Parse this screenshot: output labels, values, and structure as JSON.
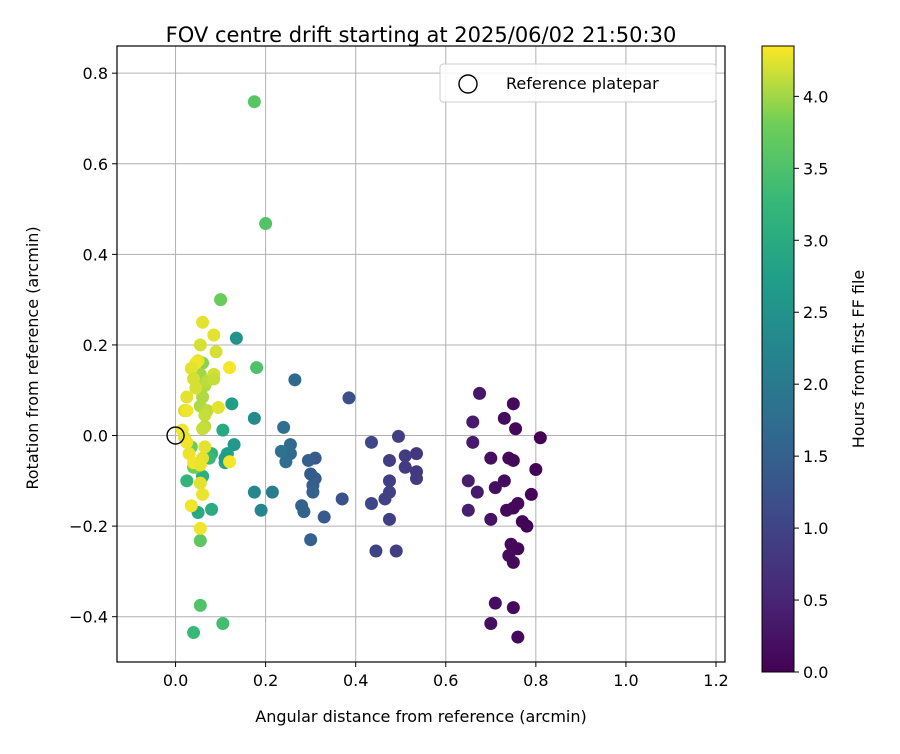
{
  "chart_data": {
    "type": "scatter",
    "title": "FOV centre drift starting at 2025/06/02 21:50:30",
    "xlabel": "Angular distance from reference (arcmin)",
    "ylabel": "Rotation from reference (arcmin)",
    "xlim": [
      -0.13,
      1.22
    ],
    "ylim": [
      -0.5,
      0.86
    ],
    "xticks": [
      {
        "value": 0.0,
        "label": "0.0"
      },
      {
        "value": 0.2,
        "label": "0.2"
      },
      {
        "value": 0.4,
        "label": "0.4"
      },
      {
        "value": 0.6,
        "label": "0.6"
      },
      {
        "value": 0.8,
        "label": "0.8"
      },
      {
        "value": 1.0,
        "label": "1.0"
      },
      {
        "value": 1.2,
        "label": "1.2"
      }
    ],
    "yticks": [
      {
        "value": -0.4,
        "label": "−0.4"
      },
      {
        "value": -0.2,
        "label": "−0.2"
      },
      {
        "value": 0.0,
        "label": "0.0"
      },
      {
        "value": 0.2,
        "label": "0.2"
      },
      {
        "value": 0.4,
        "label": "0.4"
      },
      {
        "value": 0.6,
        "label": "0.6"
      },
      {
        "value": 0.8,
        "label": "0.8"
      }
    ],
    "grid": true,
    "legend": {
      "position": "top-right",
      "entries": [
        {
          "label": "Reference platepar",
          "marker": "open-circle"
        }
      ]
    },
    "reference_point": {
      "x": 0.0,
      "y": 0.0
    },
    "colorbar": {
      "label": "Hours from first FF file",
      "colormap": "viridis",
      "range": [
        0.0,
        4.35
      ],
      "ticks": [
        {
          "value": 0.0,
          "label": "0.0"
        },
        {
          "value": 0.5,
          "label": "0.5"
        },
        {
          "value": 1.0,
          "label": "1.0"
        },
        {
          "value": 1.5,
          "label": "1.5"
        },
        {
          "value": 2.0,
          "label": "2.0"
        },
        {
          "value": 2.5,
          "label": "2.5"
        },
        {
          "value": 3.0,
          "label": "3.0"
        },
        {
          "value": 3.5,
          "label": "3.5"
        },
        {
          "value": 4.0,
          "label": "4.0"
        }
      ]
    },
    "points": [
      {
        "x": 0.81,
        "y": -0.005,
        "hours": 0.02
      },
      {
        "x": 0.8,
        "y": -0.075,
        "hours": 0.05
      },
      {
        "x": 0.79,
        "y": -0.13,
        "hours": 0.07
      },
      {
        "x": 0.78,
        "y": -0.2,
        "hours": 0.03
      },
      {
        "x": 0.77,
        "y": -0.19,
        "hours": 0.05
      },
      {
        "x": 0.76,
        "y": -0.25,
        "hours": 0.08
      },
      {
        "x": 0.76,
        "y": -0.445,
        "hours": 0.1
      },
      {
        "x": 0.75,
        "y": -0.38,
        "hours": 0.12
      },
      {
        "x": 0.745,
        "y": -0.24,
        "hours": 0.1
      },
      {
        "x": 0.74,
        "y": -0.265,
        "hours": 0.14
      },
      {
        "x": 0.75,
        "y": -0.28,
        "hours": 0.12
      },
      {
        "x": 0.76,
        "y": -0.15,
        "hours": 0.1
      },
      {
        "x": 0.75,
        "y": -0.16,
        "hours": 0.09
      },
      {
        "x": 0.735,
        "y": -0.165,
        "hours": 0.12
      },
      {
        "x": 0.73,
        "y": -0.1,
        "hours": 0.14
      },
      {
        "x": 0.74,
        "y": -0.05,
        "hours": 0.1
      },
      {
        "x": 0.75,
        "y": -0.055,
        "hours": 0.08
      },
      {
        "x": 0.755,
        "y": 0.015,
        "hours": 0.09
      },
      {
        "x": 0.75,
        "y": 0.07,
        "hours": 0.12
      },
      {
        "x": 0.73,
        "y": 0.038,
        "hours": 0.15
      },
      {
        "x": 0.71,
        "y": -0.115,
        "hours": 0.2
      },
      {
        "x": 0.7,
        "y": -0.05,
        "hours": 0.18
      },
      {
        "x": 0.7,
        "y": -0.185,
        "hours": 0.22
      },
      {
        "x": 0.7,
        "y": -0.415,
        "hours": 0.2
      },
      {
        "x": 0.71,
        "y": -0.37,
        "hours": 0.18
      },
      {
        "x": 0.675,
        "y": 0.093,
        "hours": 0.3
      },
      {
        "x": 0.66,
        "y": 0.03,
        "hours": 0.35
      },
      {
        "x": 0.66,
        "y": -0.015,
        "hours": 0.38
      },
      {
        "x": 0.67,
        "y": -0.125,
        "hours": 0.35
      },
      {
        "x": 0.65,
        "y": -0.1,
        "hours": 0.4
      },
      {
        "x": 0.65,
        "y": -0.165,
        "hours": 0.42
      },
      {
        "x": 0.535,
        "y": -0.04,
        "hours": 0.8
      },
      {
        "x": 0.535,
        "y": -0.08,
        "hours": 0.82
      },
      {
        "x": 0.535,
        "y": -0.095,
        "hours": 0.85
      },
      {
        "x": 0.51,
        "y": -0.07,
        "hours": 0.85
      },
      {
        "x": 0.51,
        "y": -0.045,
        "hours": 0.88
      },
      {
        "x": 0.495,
        "y": -0.002,
        "hours": 0.9
      },
      {
        "x": 0.475,
        "y": -0.055,
        "hours": 0.9
      },
      {
        "x": 0.475,
        "y": -0.1,
        "hours": 0.92
      },
      {
        "x": 0.475,
        "y": -0.125,
        "hours": 0.95
      },
      {
        "x": 0.465,
        "y": -0.14,
        "hours": 0.95
      },
      {
        "x": 0.475,
        "y": -0.185,
        "hours": 0.92
      },
      {
        "x": 0.49,
        "y": -0.255,
        "hours": 0.9
      },
      {
        "x": 0.445,
        "y": -0.255,
        "hours": 0.98
      },
      {
        "x": 0.435,
        "y": -0.15,
        "hours": 1.05
      },
      {
        "x": 0.435,
        "y": -0.015,
        "hours": 1.05
      },
      {
        "x": 0.385,
        "y": 0.083,
        "hours": 1.2
      },
      {
        "x": 0.37,
        "y": -0.14,
        "hours": 1.25
      },
      {
        "x": 0.33,
        "y": -0.18,
        "hours": 1.4
      },
      {
        "x": 0.31,
        "y": -0.05,
        "hours": 1.4
      },
      {
        "x": 0.31,
        "y": -0.095,
        "hours": 1.45
      },
      {
        "x": 0.305,
        "y": -0.11,
        "hours": 1.45
      },
      {
        "x": 0.305,
        "y": -0.125,
        "hours": 1.5
      },
      {
        "x": 0.3,
        "y": -0.085,
        "hours": 1.42
      },
      {
        "x": 0.295,
        "y": -0.055,
        "hours": 1.48
      },
      {
        "x": 0.3,
        "y": -0.23,
        "hours": 1.5
      },
      {
        "x": 0.28,
        "y": -0.155,
        "hours": 1.55
      },
      {
        "x": 0.285,
        "y": -0.168,
        "hours": 1.55
      },
      {
        "x": 0.265,
        "y": 0.123,
        "hours": 1.65
      },
      {
        "x": 0.255,
        "y": -0.02,
        "hours": 1.7
      },
      {
        "x": 0.255,
        "y": -0.04,
        "hours": 1.72
      },
      {
        "x": 0.245,
        "y": -0.058,
        "hours": 1.75
      },
      {
        "x": 0.24,
        "y": 0.018,
        "hours": 1.8
      },
      {
        "x": 0.235,
        "y": -0.035,
        "hours": 1.85
      },
      {
        "x": 0.215,
        "y": -0.125,
        "hours": 2.05
      },
      {
        "x": 0.19,
        "y": -0.165,
        "hours": 2.25
      },
      {
        "x": 0.175,
        "y": -0.125,
        "hours": 2.3
      },
      {
        "x": 0.175,
        "y": 0.038,
        "hours": 2.35
      },
      {
        "x": 0.135,
        "y": 0.215,
        "hours": 2.5
      },
      {
        "x": 0.13,
        "y": -0.02,
        "hours": 2.6
      },
      {
        "x": 0.125,
        "y": 0.07,
        "hours": 2.75
      },
      {
        "x": 0.115,
        "y": -0.04,
        "hours": 2.75
      },
      {
        "x": 0.11,
        "y": -0.06,
        "hours": 2.85
      },
      {
        "x": 0.11,
        "y": -0.05,
        "hours": 2.7
      },
      {
        "x": 0.105,
        "y": 0.012,
        "hours": 2.95
      },
      {
        "x": 0.08,
        "y": -0.163,
        "hours": 3.0
      },
      {
        "x": 0.05,
        "y": -0.17,
        "hours": 2.95
      },
      {
        "x": 0.06,
        "y": -0.09,
        "hours": 3.05
      },
      {
        "x": 0.06,
        "y": -0.09,
        "hours": 3.1
      },
      {
        "x": 0.08,
        "y": -0.04,
        "hours": 3.15
      },
      {
        "x": 0.025,
        "y": -0.1,
        "hours": 3.2
      },
      {
        "x": 0.075,
        "y": -0.05,
        "hours": 3.3
      },
      {
        "x": 0.04,
        "y": -0.435,
        "hours": 3.3
      },
      {
        "x": 0.105,
        "y": -0.415,
        "hours": 3.4
      },
      {
        "x": 0.055,
        "y": -0.375,
        "hours": 3.55
      },
      {
        "x": 0.055,
        "y": -0.232,
        "hours": 3.65
      },
      {
        "x": 0.18,
        "y": 0.15,
        "hours": 3.5
      },
      {
        "x": 0.2,
        "y": 0.468,
        "hours": 3.55
      },
      {
        "x": 0.175,
        "y": 0.737,
        "hours": 3.6
      },
      {
        "x": 0.1,
        "y": 0.3,
        "hours": 3.75
      },
      {
        "x": 0.045,
        "y": -0.07,
        "hours": 3.7
      },
      {
        "x": 0.035,
        "y": -0.025,
        "hours": 3.75
      },
      {
        "x": 0.04,
        "y": -0.07,
        "hours": 3.8
      },
      {
        "x": 0.06,
        "y": 0.16,
        "hours": 3.9
      },
      {
        "x": 0.045,
        "y": 0.12,
        "hours": 3.95
      },
      {
        "x": 0.055,
        "y": 0.135,
        "hours": 4.0
      },
      {
        "x": 0.065,
        "y": 0.11,
        "hours": 4.05
      },
      {
        "x": 0.07,
        "y": 0.12,
        "hours": 4.1
      },
      {
        "x": 0.06,
        "y": 0.085,
        "hours": 4.05
      },
      {
        "x": 0.055,
        "y": 0.065,
        "hours": 4.05
      },
      {
        "x": 0.07,
        "y": 0.055,
        "hours": 4.1
      },
      {
        "x": 0.065,
        "y": 0.045,
        "hours": 4.15
      },
      {
        "x": 0.065,
        "y": 0.02,
        "hours": 4.1
      },
      {
        "x": 0.06,
        "y": 0.015,
        "hours": 4.15
      },
      {
        "x": 0.085,
        "y": 0.135,
        "hours": 4.2
      },
      {
        "x": 0.085,
        "y": 0.125,
        "hours": 4.15
      },
      {
        "x": 0.09,
        "y": 0.185,
        "hours": 4.2
      },
      {
        "x": 0.085,
        "y": 0.222,
        "hours": 4.25
      },
      {
        "x": 0.06,
        "y": 0.25,
        "hours": 4.25
      },
      {
        "x": 0.055,
        "y": 0.2,
        "hours": 4.2
      },
      {
        "x": 0.05,
        "y": 0.165,
        "hours": 4.25
      },
      {
        "x": 0.045,
        "y": 0.16,
        "hours": 4.3
      },
      {
        "x": 0.035,
        "y": 0.148,
        "hours": 4.25
      },
      {
        "x": 0.04,
        "y": 0.125,
        "hours": 4.2
      },
      {
        "x": 0.045,
        "y": 0.105,
        "hours": 4.2
      },
      {
        "x": 0.025,
        "y": 0.085,
        "hours": 4.25
      },
      {
        "x": 0.02,
        "y": 0.055,
        "hours": 4.2
      },
      {
        "x": 0.025,
        "y": 0.055,
        "hours": 4.3
      },
      {
        "x": 0.015,
        "y": 0.012,
        "hours": 4.3
      },
      {
        "x": 0.02,
        "y": -0.005,
        "hours": 4.25
      },
      {
        "x": 0.025,
        "y": -0.015,
        "hours": 4.3
      },
      {
        "x": 0.03,
        "y": -0.04,
        "hours": 4.28
      },
      {
        "x": 0.04,
        "y": -0.06,
        "hours": 4.3
      },
      {
        "x": 0.035,
        "y": -0.155,
        "hours": 4.3
      },
      {
        "x": 0.055,
        "y": -0.105,
        "hours": 4.25
      },
      {
        "x": 0.06,
        "y": -0.13,
        "hours": 4.28
      },
      {
        "x": 0.055,
        "y": -0.205,
        "hours": 4.3
      },
      {
        "x": 0.065,
        "y": -0.025,
        "hours": 4.25
      },
      {
        "x": 0.06,
        "y": -0.05,
        "hours": 4.25
      },
      {
        "x": 0.055,
        "y": -0.065,
        "hours": 4.28
      },
      {
        "x": 0.095,
        "y": 0.062,
        "hours": 4.25
      },
      {
        "x": 0.12,
        "y": 0.15,
        "hours": 4.32
      },
      {
        "x": 0.12,
        "y": -0.058,
        "hours": 4.32
      }
    ]
  }
}
